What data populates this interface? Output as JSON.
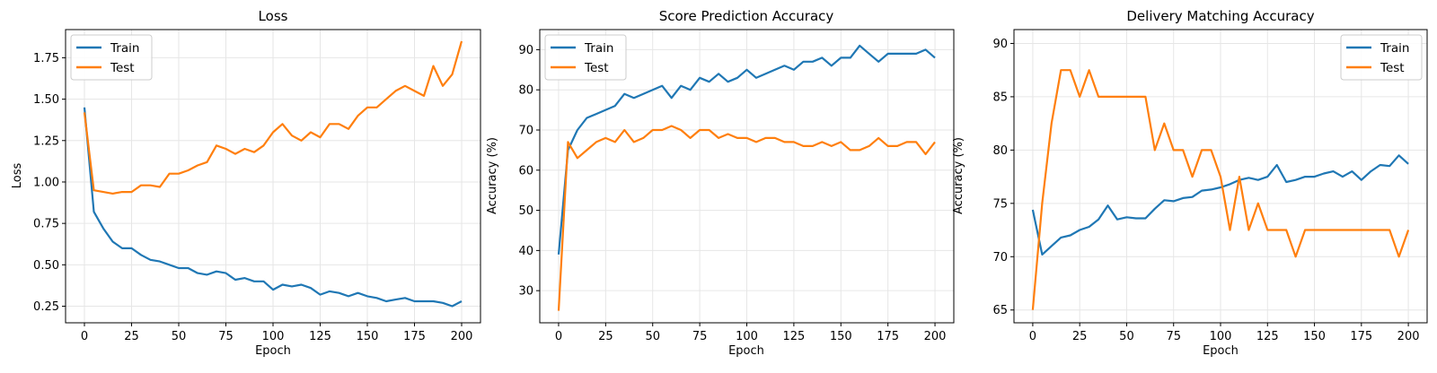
{
  "figure": {
    "colors": {
      "train": "#1f77b4",
      "test": "#ff7f0e",
      "grid": "#e6e6e6",
      "axis": "#000000",
      "legend_border": "#cccccc"
    }
  },
  "chart_data": [
    {
      "type": "line",
      "title": "Loss",
      "xlabel": "Epoch",
      "ylabel": "Loss",
      "xlim": [
        -10,
        210
      ],
      "ylim": [
        0.15,
        1.92
      ],
      "xticks": [
        0,
        25,
        50,
        75,
        100,
        125,
        150,
        175,
        200
      ],
      "yticks": [
        0.25,
        0.5,
        0.75,
        1.0,
        1.25,
        1.5,
        1.75
      ],
      "ytick_labels": [
        "0.25",
        "0.50",
        "0.75",
        "1.00",
        "1.25",
        "1.50",
        "1.75"
      ],
      "grid": true,
      "legend": {
        "position": "upper left",
        "entries": [
          "Train",
          "Test"
        ]
      },
      "x": [
        0,
        5,
        10,
        15,
        20,
        25,
        30,
        35,
        40,
        45,
        50,
        55,
        60,
        65,
        70,
        75,
        80,
        85,
        90,
        95,
        100,
        105,
        110,
        115,
        120,
        125,
        130,
        135,
        140,
        145,
        150,
        155,
        160,
        165,
        170,
        175,
        180,
        185,
        190,
        195,
        200
      ],
      "series": [
        {
          "name": "Train",
          "values": [
            1.45,
            0.82,
            0.72,
            0.64,
            0.6,
            0.6,
            0.56,
            0.53,
            0.52,
            0.5,
            0.48,
            0.48,
            0.45,
            0.44,
            0.46,
            0.45,
            0.41,
            0.42,
            0.4,
            0.4,
            0.35,
            0.38,
            0.37,
            0.38,
            0.36,
            0.32,
            0.34,
            0.33,
            0.31,
            0.33,
            0.31,
            0.3,
            0.28,
            0.29,
            0.3,
            0.28,
            0.28,
            0.28,
            0.27,
            0.25,
            0.28
          ]
        },
        {
          "name": "Test",
          "values": [
            1.42,
            0.95,
            0.94,
            0.93,
            0.94,
            0.94,
            0.98,
            0.98,
            0.97,
            1.05,
            1.05,
            1.07,
            1.1,
            1.12,
            1.22,
            1.2,
            1.17,
            1.2,
            1.18,
            1.22,
            1.3,
            1.35,
            1.28,
            1.25,
            1.3,
            1.27,
            1.35,
            1.35,
            1.32,
            1.4,
            1.45,
            1.45,
            1.5,
            1.55,
            1.58,
            1.55,
            1.52,
            1.7,
            1.58,
            1.65,
            1.85
          ]
        }
      ]
    },
    {
      "type": "line",
      "title": "Score Prediction Accuracy",
      "xlabel": "Epoch",
      "ylabel": "Accuracy (%)",
      "xlim": [
        -10,
        210
      ],
      "ylim": [
        22,
        95
      ],
      "xticks": [
        0,
        25,
        50,
        75,
        100,
        125,
        150,
        175,
        200
      ],
      "yticks": [
        30,
        40,
        50,
        60,
        70,
        80,
        90
      ],
      "ytick_labels": [
        "30",
        "40",
        "50",
        "60",
        "70",
        "80",
        "90"
      ],
      "grid": true,
      "legend": {
        "position": "upper left",
        "entries": [
          "Train",
          "Test"
        ]
      },
      "x": [
        0,
        5,
        10,
        15,
        20,
        25,
        30,
        35,
        40,
        45,
        50,
        55,
        60,
        65,
        70,
        75,
        80,
        85,
        90,
        95,
        100,
        105,
        110,
        115,
        120,
        125,
        130,
        135,
        140,
        145,
        150,
        155,
        160,
        165,
        170,
        175,
        180,
        185,
        190,
        195,
        200
      ],
      "series": [
        {
          "name": "Train",
          "values": [
            39,
            65,
            70,
            73,
            74,
            75,
            76,
            79,
            78,
            79,
            80,
            81,
            78,
            81,
            80,
            83,
            82,
            84,
            82,
            83,
            85,
            83,
            84,
            85,
            86,
            85,
            87,
            87,
            88,
            86,
            88,
            88,
            91,
            89,
            87,
            89,
            89,
            89,
            89,
            90,
            88
          ]
        },
        {
          "name": "Test",
          "values": [
            25,
            67,
            63,
            65,
            67,
            68,
            67,
            70,
            67,
            68,
            70,
            70,
            71,
            70,
            68,
            70,
            70,
            68,
            69,
            68,
            68,
            67,
            68,
            68,
            67,
            67,
            66,
            66,
            67,
            66,
            67,
            65,
            65,
            66,
            68,
            66,
            66,
            67,
            67,
            64,
            67
          ]
        }
      ]
    },
    {
      "type": "line",
      "title": "Delivery Matching Accuracy",
      "xlabel": "Epoch",
      "ylabel": "Accuracy (%)",
      "xlim": [
        -10,
        210
      ],
      "ylim": [
        63.8,
        91.3
      ],
      "xticks": [
        0,
        25,
        50,
        75,
        100,
        125,
        150,
        175,
        200
      ],
      "yticks": [
        65,
        70,
        75,
        80,
        85,
        90
      ],
      "ytick_labels": [
        "65",
        "70",
        "75",
        "80",
        "85",
        "90"
      ],
      "grid": true,
      "legend": {
        "position": "upper right",
        "entries": [
          "Train",
          "Test"
        ]
      },
      "x": [
        0,
        5,
        10,
        15,
        20,
        25,
        30,
        35,
        40,
        45,
        50,
        55,
        60,
        65,
        70,
        75,
        80,
        85,
        90,
        95,
        100,
        105,
        110,
        115,
        120,
        125,
        130,
        135,
        140,
        145,
        150,
        155,
        160,
        165,
        170,
        175,
        180,
        185,
        190,
        195,
        200
      ],
      "series": [
        {
          "name": "Train",
          "values": [
            74.4,
            70.2,
            71.0,
            71.8,
            72.0,
            72.5,
            72.8,
            73.5,
            74.8,
            73.5,
            73.7,
            73.6,
            73.6,
            74.5,
            75.3,
            75.2,
            75.5,
            75.6,
            76.2,
            76.3,
            76.5,
            76.8,
            77.2,
            77.4,
            77.2,
            77.5,
            78.6,
            77.0,
            77.2,
            77.5,
            77.5,
            77.8,
            78.0,
            77.5,
            78.0,
            77.2,
            78.0,
            78.6,
            78.5,
            79.5,
            78.7
          ]
        },
        {
          "name": "Test",
          "values": [
            65.0,
            75.0,
            82.5,
            87.5,
            87.5,
            85.0,
            87.5,
            85.0,
            85.0,
            85.0,
            85.0,
            85.0,
            85.0,
            80.0,
            82.5,
            80.0,
            80.0,
            77.5,
            80.0,
            80.0,
            77.5,
            72.5,
            77.5,
            72.5,
            75.0,
            72.5,
            72.5,
            72.5,
            70.0,
            72.5,
            72.5,
            72.5,
            72.5,
            72.5,
            72.5,
            72.5,
            72.5,
            72.5,
            72.5,
            70.0,
            72.5
          ]
        }
      ]
    }
  ]
}
